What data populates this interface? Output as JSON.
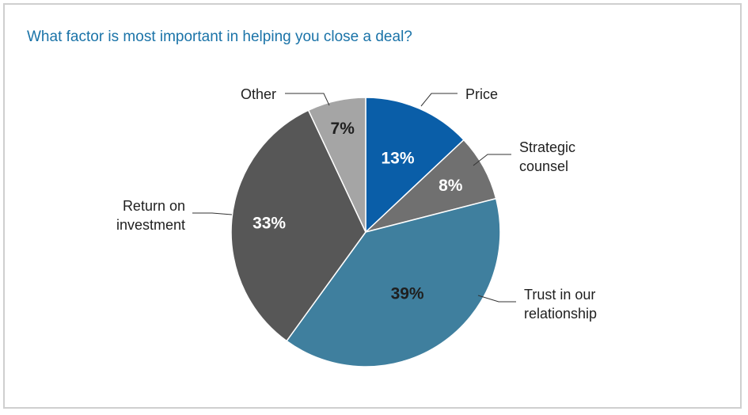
{
  "chart_data": {
    "type": "pie",
    "title": "What factor is most important in helping you close a deal?",
    "slices": [
      {
        "name": "Price",
        "label_lines": [
          "Price"
        ],
        "value": 13,
        "display": "13%",
        "color": "#0a5ea8",
        "text_color": "#ffffff"
      },
      {
        "name": "Strategic counsel",
        "label_lines": [
          "Strategic",
          "counsel"
        ],
        "value": 8,
        "display": "8%",
        "color": "#707070",
        "text_color": "#ffffff"
      },
      {
        "name": "Trust in our relationship",
        "label_lines": [
          "Trust in our",
          "relationship"
        ],
        "value": 39,
        "display": "39%",
        "color": "#3f7f9e",
        "text_color": "#1f1f1f"
      },
      {
        "name": "Return on investment",
        "label_lines": [
          "Return on",
          "investment"
        ],
        "value": 33,
        "display": "33%",
        "color": "#575757",
        "text_color": "#ffffff"
      },
      {
        "name": "Other",
        "label_lines": [
          "Other"
        ],
        "value": 7,
        "display": "7%",
        "color": "#a5a5a5",
        "text_color": "#1f1f1f"
      }
    ]
  }
}
